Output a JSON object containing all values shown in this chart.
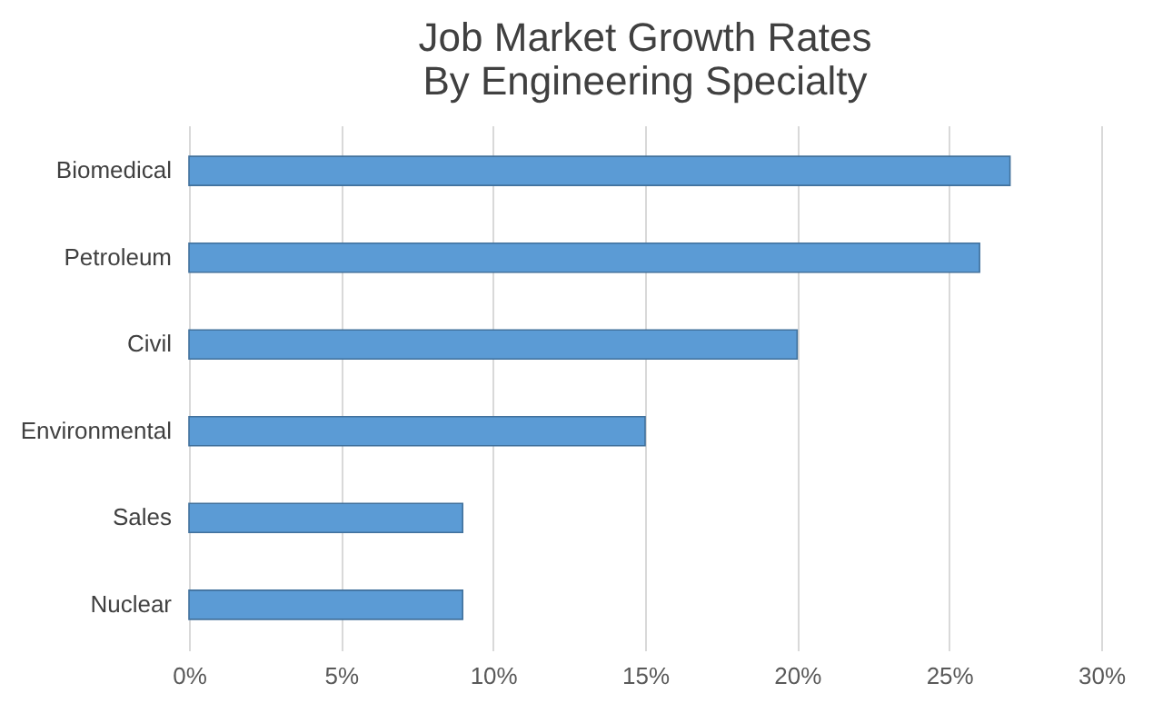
{
  "chart_data": {
    "type": "bar",
    "orientation": "horizontal",
    "title": "Job Market Growth Rates\nBy Engineering Specialty",
    "categories": [
      "Biomedical",
      "Petroleum",
      "Civil",
      "Environmental",
      "Sales",
      "Nuclear"
    ],
    "values": [
      27,
      26,
      20,
      15,
      9,
      9
    ],
    "color": "#5b9bd5",
    "xlim": [
      0,
      30
    ],
    "xticks": [
      {
        "value": 0,
        "label": "0%"
      },
      {
        "value": 5,
        "label": "5%"
      },
      {
        "value": 10,
        "label": "10%"
      },
      {
        "value": 15,
        "label": "15%"
      },
      {
        "value": 20,
        "label": "20%"
      },
      {
        "value": 25,
        "label": "25%"
      },
      {
        "value": 30,
        "label": "30%"
      }
    ],
    "grid": "x"
  }
}
